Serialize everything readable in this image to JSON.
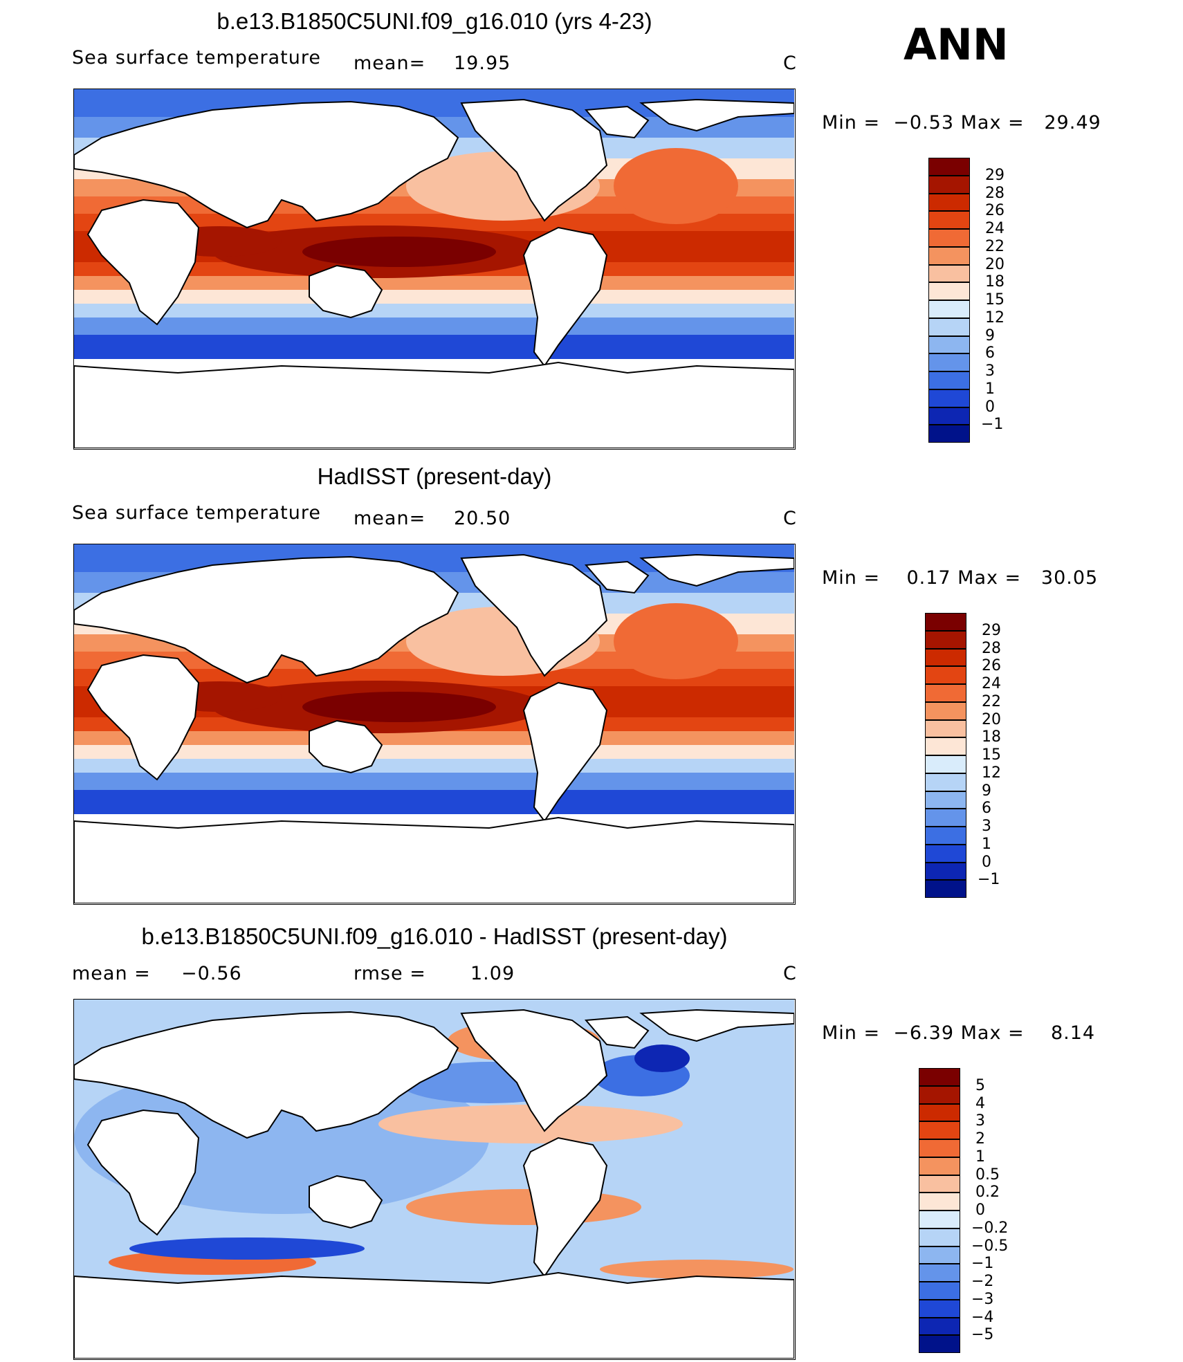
{
  "season": "ANN",
  "panels": [
    {
      "title": "b.e13.B1850C5UNI.f09_g16.010 (yrs 4-23)",
      "left_label": "Sea surface temperature",
      "stat1": "mean=",
      "stat1_value": "19.95",
      "stat2": "",
      "stat2_value": "",
      "units": "C",
      "minmax": "Min =  −0.53 Max =   29.49",
      "colorbar_labels": [
        "29",
        "28",
        "26",
        "24",
        "22",
        "20",
        "18",
        "15",
        "12",
        "9",
        "6",
        "3",
        "1",
        "0",
        "−1"
      ],
      "colors": [
        "#7a0000",
        "#a51500",
        "#cc2a00",
        "#e34512",
        "#f06a35",
        "#f4935f",
        "#f9c0a0",
        "#fde6d6",
        "#d9ecfb",
        "#b6d4f6",
        "#8db6f0",
        "#6494ea",
        "#3c6fe3",
        "#1f48d6",
        "#0d26b3",
        "#00128a"
      ]
    },
    {
      "title": "HadISST (present-day)",
      "left_label": "Sea surface temperature",
      "stat1": "mean=",
      "stat1_value": "20.50",
      "stat2": "",
      "stat2_value": "",
      "units": "C",
      "minmax": "Min =    0.17 Max =   30.05",
      "colorbar_labels": [
        "29",
        "28",
        "26",
        "24",
        "22",
        "20",
        "18",
        "15",
        "12",
        "9",
        "6",
        "3",
        "1",
        "0",
        "−1"
      ],
      "colors": [
        "#7a0000",
        "#a51500",
        "#cc2a00",
        "#e34512",
        "#f06a35",
        "#f4935f",
        "#f9c0a0",
        "#fde6d6",
        "#d9ecfb",
        "#b6d4f6",
        "#8db6f0",
        "#6494ea",
        "#3c6fe3",
        "#1f48d6",
        "#0d26b3",
        "#00128a"
      ]
    },
    {
      "title": "b.e13.B1850C5UNI.f09_g16.010 - HadISST (present-day)",
      "left_label": "",
      "stat1": "mean =",
      "stat1_value": "−0.56",
      "stat2": "rmse =",
      "stat2_value": "1.09",
      "units": "C",
      "minmax": "Min =  −6.39 Max =    8.14",
      "colorbar_labels": [
        "5",
        "4",
        "3",
        "2",
        "1",
        "0.5",
        "0.2",
        "0",
        "−0.2",
        "−0.5",
        "−1",
        "−2",
        "−3",
        "−4",
        "−5"
      ],
      "colors": [
        "#7a0000",
        "#a51500",
        "#cc2a00",
        "#e34512",
        "#f06a35",
        "#f4935f",
        "#f9c0a0",
        "#fde6d6",
        "#d9ecfb",
        "#b6d4f6",
        "#8db6f0",
        "#6494ea",
        "#3c6fe3",
        "#1f48d6",
        "#0d26b3",
        "#00128a"
      ]
    }
  ]
}
